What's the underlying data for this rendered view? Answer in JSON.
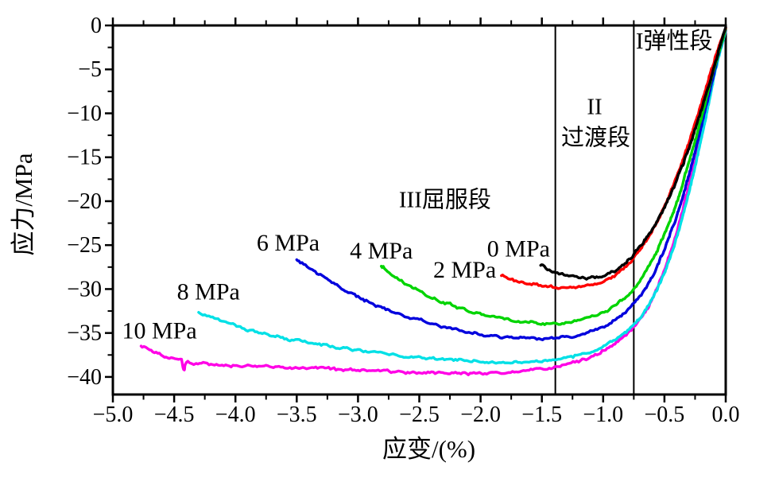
{
  "chart_data": {
    "type": "line",
    "title": "",
    "xlabel": "应变/(%)",
    "ylabel": "应力/MPa",
    "xlim": [
      -5.0,
      0.0
    ],
    "ylim": [
      -42,
      0
    ],
    "grid": false,
    "frame": true,
    "x_ticks": {
      "values": [
        -5.0,
        -4.5,
        -4.0,
        -3.5,
        -3.0,
        -2.5,
        -2.0,
        -1.5,
        -1.0,
        -0.5,
        0.0
      ],
      "labels": [
        "−5.0",
        "−4.5",
        "−4.0",
        "−3.5",
        "−3.0",
        "−2.5",
        "−2.0",
        "−1.5",
        "−1.0",
        "−0.5",
        "0.0"
      ]
    },
    "x_minor_step": 0.25,
    "y_ticks": {
      "values": [
        0,
        -5,
        -10,
        -15,
        -20,
        -25,
        -30,
        -35,
        -40
      ],
      "labels": [
        "0",
        "−5",
        "−10",
        "−15",
        "−20",
        "−25",
        "−30",
        "−35",
        "−40"
      ]
    },
    "y_minor_step": 2.5,
    "boundary_lines": {
      "color": "#000000",
      "x_values": [
        -1.39,
        -0.75
      ]
    },
    "region_labels": [
      {
        "text": "I弹性段",
        "x": -0.42,
        "y": -1.7
      },
      {
        "text": "II",
        "x": -1.07,
        "y": -9.2
      },
      {
        "text": "过渡段",
        "x": -1.06,
        "y": -12.7
      },
      {
        "text": "III屈服段",
        "x": -2.29,
        "y": -19.8
      }
    ],
    "series": [
      {
        "name": "0 MPa",
        "color": "#000000",
        "label": {
          "text": "0 MPa",
          "x": -1.69,
          "y": -25.4
        },
        "points": [
          [
            -1.51,
            -27.3
          ],
          [
            -1.44,
            -27.9
          ],
          [
            -1.36,
            -28.3
          ],
          [
            -1.28,
            -28.6
          ],
          [
            -1.2,
            -28.75
          ],
          [
            -1.12,
            -28.8
          ],
          [
            -1.04,
            -28.6
          ],
          [
            -0.96,
            -28.3
          ],
          [
            -0.88,
            -27.7
          ],
          [
            -0.8,
            -26.8
          ],
          [
            -0.75,
            -26.0
          ],
          [
            -0.68,
            -24.8
          ],
          [
            -0.6,
            -23.2
          ],
          [
            -0.52,
            -21.2
          ],
          [
            -0.45,
            -19.2
          ],
          [
            -0.38,
            -16.9
          ],
          [
            -0.31,
            -14.3
          ],
          [
            -0.24,
            -11.4
          ],
          [
            -0.17,
            -8.3
          ],
          [
            -0.1,
            -5.0
          ],
          [
            -0.04,
            -2.0
          ],
          [
            0,
            -0.2
          ]
        ]
      },
      {
        "name": "2 MPa",
        "color": "#ff0000",
        "label": {
          "text": "2 MPa",
          "x": -2.13,
          "y": -27.8
        },
        "points": [
          [
            -1.83,
            -28.4
          ],
          [
            -1.74,
            -28.9
          ],
          [
            -1.64,
            -29.3
          ],
          [
            -1.54,
            -29.5
          ],
          [
            -1.44,
            -29.7
          ],
          [
            -1.34,
            -29.8
          ],
          [
            -1.24,
            -29.75
          ],
          [
            -1.14,
            -29.6
          ],
          [
            -1.04,
            -29.3
          ],
          [
            -0.95,
            -28.8
          ],
          [
            -0.87,
            -28.1
          ],
          [
            -0.79,
            -27.1
          ],
          [
            -0.72,
            -25.9
          ],
          [
            -0.64,
            -24.3
          ],
          [
            -0.56,
            -22.3
          ],
          [
            -0.48,
            -20.0
          ],
          [
            -0.41,
            -17.6
          ],
          [
            -0.34,
            -14.9
          ],
          [
            -0.27,
            -12.0
          ],
          [
            -0.2,
            -8.9
          ],
          [
            -0.13,
            -5.7
          ],
          [
            -0.06,
            -2.6
          ],
          [
            0,
            -0.3
          ]
        ]
      },
      {
        "name": "4 MPa",
        "color": "#00d400",
        "label": {
          "text": "4 MPa",
          "x": -2.81,
          "y": -25.6
        },
        "points": [
          [
            -2.81,
            -27.3
          ],
          [
            -2.72,
            -28.4
          ],
          [
            -2.62,
            -29.3
          ],
          [
            -2.52,
            -30.1
          ],
          [
            -2.42,
            -30.8
          ],
          [
            -2.32,
            -31.4
          ],
          [
            -2.22,
            -31.9
          ],
          [
            -2.12,
            -32.4
          ],
          [
            -2.02,
            -32.8
          ],
          [
            -1.92,
            -33.1
          ],
          [
            -1.82,
            -33.4
          ],
          [
            -1.72,
            -33.6
          ],
          [
            -1.62,
            -33.75
          ],
          [
            -1.52,
            -33.85
          ],
          [
            -1.42,
            -33.9
          ],
          [
            -1.32,
            -33.8
          ],
          [
            -1.22,
            -33.6
          ],
          [
            -1.12,
            -33.3
          ],
          [
            -1.02,
            -32.8
          ],
          [
            -0.94,
            -32.2
          ],
          [
            -0.86,
            -31.4
          ],
          [
            -0.78,
            -30.4
          ],
          [
            -0.71,
            -29.2
          ],
          [
            -0.64,
            -27.7
          ],
          [
            -0.57,
            -25.9
          ],
          [
            -0.5,
            -23.8
          ],
          [
            -0.43,
            -21.3
          ],
          [
            -0.36,
            -18.4
          ],
          [
            -0.29,
            -15.1
          ],
          [
            -0.22,
            -11.6
          ],
          [
            -0.15,
            -7.9
          ],
          [
            -0.08,
            -4.2
          ],
          [
            0,
            -0.4
          ]
        ]
      },
      {
        "name": "6 MPa",
        "color": "#0000dd",
        "label": {
          "text": "6 MPa",
          "x": -3.57,
          "y": -24.7
        },
        "points": [
          [
            -3.5,
            -26.6
          ],
          [
            -3.4,
            -27.6
          ],
          [
            -3.28,
            -28.7
          ],
          [
            -3.16,
            -29.7
          ],
          [
            -3.04,
            -30.6
          ],
          [
            -2.92,
            -31.4
          ],
          [
            -2.8,
            -32.1
          ],
          [
            -2.68,
            -32.8
          ],
          [
            -2.56,
            -33.3
          ],
          [
            -2.44,
            -33.8
          ],
          [
            -2.32,
            -34.3
          ],
          [
            -2.2,
            -34.6
          ],
          [
            -2.08,
            -34.95
          ],
          [
            -1.96,
            -35.2
          ],
          [
            -1.84,
            -35.4
          ],
          [
            -1.72,
            -35.5
          ],
          [
            -1.6,
            -35.6
          ],
          [
            -1.48,
            -35.6
          ],
          [
            -1.36,
            -35.5
          ],
          [
            -1.24,
            -35.3
          ],
          [
            -1.12,
            -34.9
          ],
          [
            -1.02,
            -34.4
          ],
          [
            -0.92,
            -33.7
          ],
          [
            -0.84,
            -32.9
          ],
          [
            -0.76,
            -31.8
          ],
          [
            -0.68,
            -30.4
          ],
          [
            -0.61,
            -28.8
          ],
          [
            -0.54,
            -26.8
          ],
          [
            -0.47,
            -24.4
          ],
          [
            -0.4,
            -21.7
          ],
          [
            -0.33,
            -18.5
          ],
          [
            -0.26,
            -14.9
          ],
          [
            -0.19,
            -11.0
          ],
          [
            -0.12,
            -6.9
          ],
          [
            -0.05,
            -2.8
          ],
          [
            0,
            -0.5
          ]
        ]
      },
      {
        "name": "8 MPa",
        "color": "#00e0e6",
        "label": {
          "text": "8 MPa",
          "x": -4.22,
          "y": -30.3
        },
        "points": [
          [
            -4.3,
            -32.6
          ],
          [
            -4.2,
            -33.2
          ],
          [
            -4.08,
            -33.8
          ],
          [
            -3.96,
            -34.3
          ],
          [
            -3.84,
            -34.8
          ],
          [
            -3.72,
            -35.2
          ],
          [
            -3.6,
            -35.6
          ],
          [
            -3.48,
            -35.9
          ],
          [
            -3.36,
            -36.2
          ],
          [
            -3.24,
            -36.5
          ],
          [
            -3.12,
            -36.8
          ],
          [
            -3.0,
            -37.0
          ],
          [
            -2.88,
            -37.2
          ],
          [
            -2.76,
            -37.4
          ],
          [
            -2.64,
            -37.6
          ],
          [
            -2.52,
            -37.75
          ],
          [
            -2.4,
            -37.9
          ],
          [
            -2.28,
            -38.0
          ],
          [
            -2.16,
            -38.1
          ],
          [
            -2.04,
            -38.2
          ],
          [
            -1.92,
            -38.25
          ],
          [
            -1.8,
            -38.3
          ],
          [
            -1.68,
            -38.3
          ],
          [
            -1.56,
            -38.2
          ],
          [
            -1.44,
            -38.1
          ],
          [
            -1.32,
            -37.8
          ],
          [
            -1.2,
            -37.5
          ],
          [
            -1.08,
            -37.0
          ],
          [
            -0.98,
            -36.4
          ],
          [
            -0.88,
            -35.6
          ],
          [
            -0.8,
            -34.7
          ],
          [
            -0.72,
            -33.6
          ],
          [
            -0.64,
            -32.1
          ],
          [
            -0.57,
            -30.3
          ],
          [
            -0.5,
            -28.1
          ],
          [
            -0.43,
            -25.4
          ],
          [
            -0.36,
            -22.2
          ],
          [
            -0.29,
            -18.4
          ],
          [
            -0.22,
            -14.2
          ],
          [
            -0.15,
            -9.6
          ],
          [
            -0.08,
            -4.9
          ],
          [
            0,
            -0.6
          ]
        ]
      },
      {
        "name": "10 MPa",
        "color": "#ff00e6",
        "label": {
          "text": "10 MPa",
          "x": -4.62,
          "y": -34.7
        },
        "points": [
          [
            -4.77,
            -36.4
          ],
          [
            -4.7,
            -36.9
          ],
          [
            -4.62,
            -37.4
          ],
          [
            -4.54,
            -37.8
          ],
          [
            -4.48,
            -38.0
          ],
          [
            -4.44,
            -38.1
          ],
          [
            -4.42,
            -39.3
          ],
          [
            -4.4,
            -38.4
          ],
          [
            -4.32,
            -38.5
          ],
          [
            -4.2,
            -38.6
          ],
          [
            -4.08,
            -38.7
          ],
          [
            -3.96,
            -38.75
          ],
          [
            -3.84,
            -38.8
          ],
          [
            -3.72,
            -38.85
          ],
          [
            -3.6,
            -38.9
          ],
          [
            -3.48,
            -39.0
          ],
          [
            -3.36,
            -39.05
          ],
          [
            -3.24,
            -39.1
          ],
          [
            -3.12,
            -39.2
          ],
          [
            -3.0,
            -39.25
          ],
          [
            -2.88,
            -39.3
          ],
          [
            -2.76,
            -39.4
          ],
          [
            -2.64,
            -39.45
          ],
          [
            -2.52,
            -39.5
          ],
          [
            -2.4,
            -39.55
          ],
          [
            -2.28,
            -39.6
          ],
          [
            -2.16,
            -39.6
          ],
          [
            -2.04,
            -39.6
          ],
          [
            -1.92,
            -39.55
          ],
          [
            -1.8,
            -39.5
          ],
          [
            -1.68,
            -39.4
          ],
          [
            -1.56,
            -39.2
          ],
          [
            -1.44,
            -39.0
          ],
          [
            -1.32,
            -38.7
          ],
          [
            -1.2,
            -38.2
          ],
          [
            -1.08,
            -37.6
          ],
          [
            -0.98,
            -36.9
          ],
          [
            -0.88,
            -36.0
          ],
          [
            -0.8,
            -35.0
          ],
          [
            -0.72,
            -33.8
          ],
          [
            -0.64,
            -32.2
          ],
          [
            -0.57,
            -30.2
          ],
          [
            -0.5,
            -27.8
          ],
          [
            -0.43,
            -24.9
          ],
          [
            -0.36,
            -21.5
          ],
          [
            -0.29,
            -17.6
          ],
          [
            -0.22,
            -13.3
          ],
          [
            -0.15,
            -8.8
          ],
          [
            -0.08,
            -4.3
          ],
          [
            0,
            -0.7
          ]
        ]
      }
    ]
  }
}
